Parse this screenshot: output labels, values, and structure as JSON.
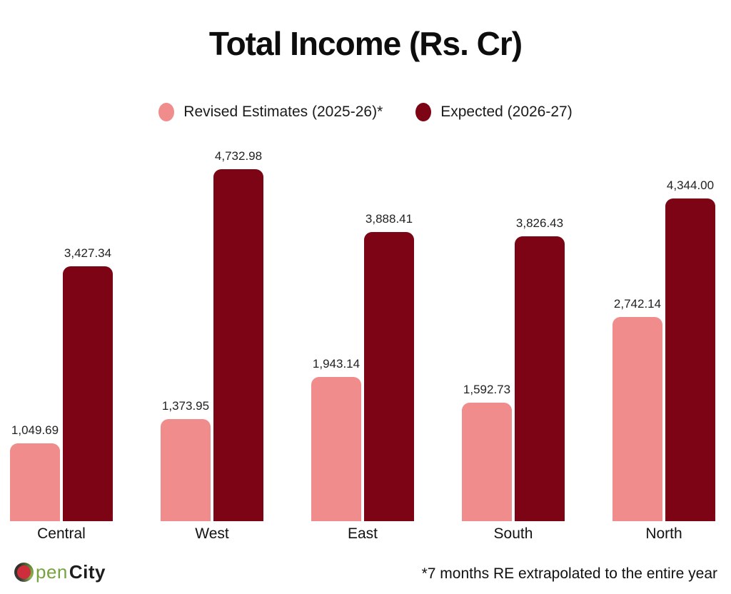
{
  "title": "Total Income (Rs. Cr)",
  "legend": {
    "items": [
      {
        "label": "Revised Estimates (2025-26)*",
        "color": "#F08C8C"
      },
      {
        "label": "Expected (2026-27)",
        "color": "#7D0414"
      }
    ]
  },
  "chart_data": {
    "type": "bar",
    "title": "Total Income (Rs. Cr)",
    "categories": [
      "Central",
      "West",
      "East",
      "South",
      "North"
    ],
    "series": [
      {
        "name": "Revised Estimates (2025-26)*",
        "color": "#F08C8C",
        "values": [
          1049.69,
          1373.95,
          1943.14,
          1592.73,
          2742.14
        ],
        "labels": [
          "1,049.69",
          "1,373.95",
          "1,943.14",
          "1,592.73",
          "2,742.14"
        ]
      },
      {
        "name": "Expected (2026-27)",
        "color": "#7D0414",
        "values": [
          3427.34,
          4732.98,
          3888.41,
          3826.43,
          4344.0
        ],
        "labels": [
          "3,427.34",
          "4,732.98",
          "3,888.41",
          "3,826.43",
          "4,344.00"
        ]
      }
    ],
    "xlabel": "",
    "ylabel": "",
    "ylim": [
      0,
      4732.98
    ],
    "grid": false,
    "legend_position": "top",
    "value_labels": true
  },
  "footer": {
    "logo": {
      "pen": "pen",
      "city": "City"
    },
    "footnote": "*7 months RE extrapolated to the entire year"
  }
}
